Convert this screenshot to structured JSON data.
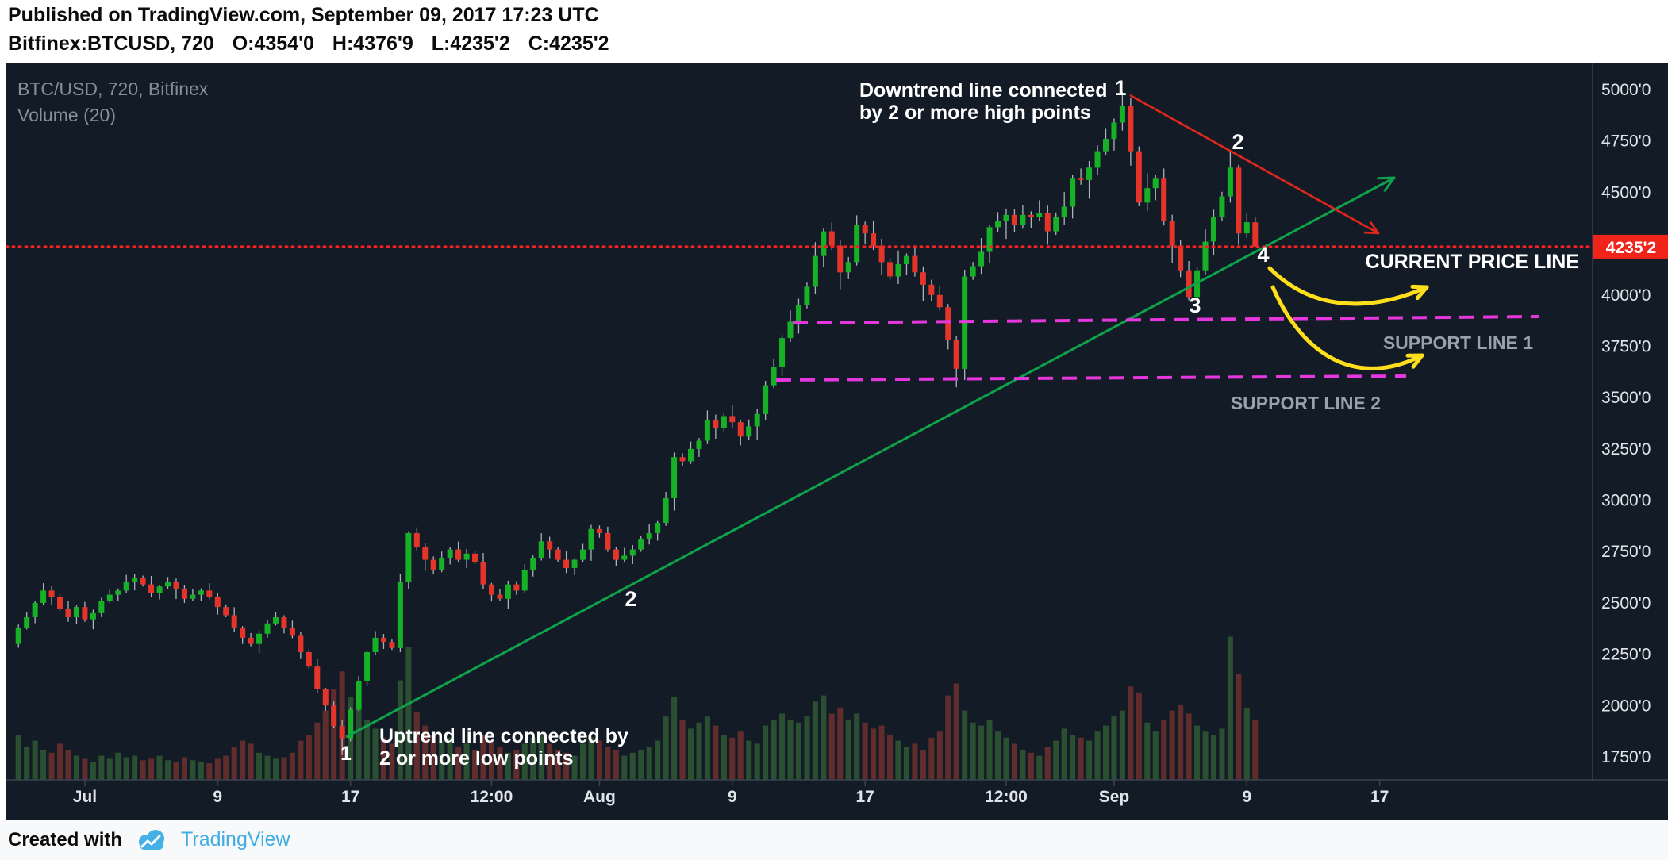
{
  "header": {
    "published_line": "Published on TradingView.com, September 09, 2017 17:23 UTC",
    "symbol_line": "Bitfinex:BTCUSD, 720",
    "ohlc": {
      "o": "O:4354'0",
      "h": "H:4376'9",
      "l": "L:4235'2",
      "c": "C:4235'2"
    }
  },
  "legend": {
    "symbol": "BTC/USD, 720, Bitfinex",
    "volume": "Volume (20)"
  },
  "footer": {
    "created_with": "Created with",
    "brand": "TradingView"
  },
  "axis": {
    "price_ticks": [
      {
        "label": "5000'0",
        "value": 5000
      },
      {
        "label": "4750'0",
        "value": 4750
      },
      {
        "label": "4500'0",
        "value": 4500
      },
      {
        "label": "4250'0",
        "value": 4250
      },
      {
        "label": "4000'0",
        "value": 4000
      },
      {
        "label": "3750'0",
        "value": 3750
      },
      {
        "label": "3500'0",
        "value": 3500
      },
      {
        "label": "3250'0",
        "value": 3250
      },
      {
        "label": "3000'0",
        "value": 3000
      },
      {
        "label": "2750'0",
        "value": 2750
      },
      {
        "label": "2500'0",
        "value": 2500
      },
      {
        "label": "2250'0",
        "value": 2250
      },
      {
        "label": "2000'0",
        "value": 2000
      },
      {
        "label": "1750'0",
        "value": 1750
      }
    ],
    "time_ticks": [
      {
        "label": "Jul",
        "i": 8
      },
      {
        "label": "9",
        "i": 24
      },
      {
        "label": "17",
        "i": 40
      },
      {
        "label": "12:00",
        "i": 57
      },
      {
        "label": "Aug",
        "i": 70
      },
      {
        "label": "9",
        "i": 86
      },
      {
        "label": "17",
        "i": 102
      },
      {
        "label": "12:00",
        "i": 119
      },
      {
        "label": "Sep",
        "i": 132
      },
      {
        "label": "9",
        "i": 148
      },
      {
        "label": "17",
        "i": 164
      }
    ],
    "price_badge": {
      "label": "4235'2",
      "value": 4235.2
    }
  },
  "annotations": {
    "downtrend": {
      "line1": "Downtrend line connected",
      "line2": "by 2 or more high points"
    },
    "uptrend": {
      "line1": "Uptrend line connected by",
      "line2": "2 or more low points"
    },
    "current_price_label": "CURRENT PRICE LINE",
    "support_line_1_label": "SUPPORT LINE 1",
    "support_line_2_label": "SUPPORT LINE 2",
    "point_labels": {
      "peak": "1",
      "lower_high": "2",
      "pullback_low": "3",
      "current": "4",
      "trend_start": "1",
      "trend_mid": "2"
    }
  },
  "chart_data": {
    "type": "candlestick",
    "title": "BTC/USD, 720, Bitfinex",
    "symbol": "BTC/USD",
    "exchange": "Bitfinex",
    "interval_minutes": 720,
    "start_candle_time": "2017-06-27 00:00 UTC",
    "candles_per_day": 2,
    "price_axis_range": [
      1750,
      5000
    ],
    "first_open": 2300,
    "closes": [
      2380,
      2430,
      2500,
      2560,
      2530,
      2470,
      2430,
      2480,
      2420,
      2450,
      2510,
      2540,
      2560,
      2600,
      2620,
      2590,
      2550,
      2580,
      2600,
      2570,
      2520,
      2540,
      2560,
      2530,
      2480,
      2440,
      2380,
      2330,
      2300,
      2350,
      2400,
      2430,
      2380,
      2340,
      2260,
      2190,
      2080,
      2000,
      1900,
      1840,
      1980,
      2120,
      2260,
      2330,
      2310,
      2280,
      2600,
      2840,
      2770,
      2710,
      2660,
      2720,
      2760,
      2710,
      2740,
      2700,
      2590,
      2540,
      2520,
      2590,
      2560,
      2660,
      2720,
      2800,
      2760,
      2710,
      2670,
      2710,
      2760,
      2860,
      2840,
      2760,
      2710,
      2730,
      2760,
      2810,
      2840,
      2890,
      3010,
      3210,
      3190,
      3250,
      3290,
      3390,
      3350,
      3410,
      3380,
      3310,
      3360,
      3420,
      3560,
      3650,
      3790,
      3870,
      3950,
      4040,
      4190,
      4310,
      4240,
      4110,
      4160,
      4340,
      4300,
      4240,
      4160,
      4090,
      4150,
      4190,
      4110,
      4050,
      4000,
      3940,
      3780,
      3640,
      4090,
      4140,
      4210,
      4330,
      4360,
      4390,
      4340,
      4390,
      4380,
      4400,
      4310,
      4380,
      4430,
      4570,
      4560,
      4620,
      4700,
      4760,
      4840,
      4920,
      4700,
      4450,
      4520,
      4570,
      4360,
      4240,
      4120,
      3990,
      4120,
      4260,
      4380,
      4480,
      4620,
      4300,
      4354,
      4235.2
    ],
    "volumes": [
      30,
      22,
      26,
      20,
      18,
      24,
      20,
      16,
      14,
      12,
      16,
      14,
      18,
      15,
      16,
      13,
      14,
      16,
      13,
      12,
      15,
      13,
      12,
      11,
      14,
      16,
      22,
      26,
      24,
      18,
      16,
      14,
      15,
      18,
      26,
      30,
      38,
      46,
      60,
      72,
      55,
      48,
      40,
      34,
      28,
      24,
      66,
      88,
      45,
      36,
      30,
      26,
      28,
      22,
      24,
      20,
      30,
      26,
      22,
      18,
      20,
      24,
      28,
      30,
      24,
      20,
      18,
      16,
      24,
      28,
      26,
      22,
      20,
      16,
      18,
      20,
      22,
      26,
      42,
      55,
      40,
      34,
      38,
      42,
      36,
      30,
      28,
      32,
      26,
      24,
      36,
      40,
      44,
      40,
      38,
      42,
      52,
      56,
      44,
      48,
      40,
      44,
      38,
      34,
      36,
      30,
      26,
      22,
      24,
      20,
      28,
      32,
      56,
      64,
      46,
      38,
      36,
      40,
      32,
      28,
      24,
      20,
      18,
      16,
      22,
      26,
      34,
      30,
      28,
      26,
      32,
      36,
      42,
      46,
      62,
      58,
      38,
      32,
      40,
      46,
      50,
      44,
      36,
      32,
      30,
      34,
      95,
      70,
      48,
      40
    ],
    "wick_upper_pct": [
      0.6,
      1.1,
      0.4,
      1.4,
      0.8,
      0.5,
      1.6,
      0.3,
      1.0,
      0.7
    ],
    "wick_lower_pct": [
      0.8,
      0.4,
      1.2,
      0.5,
      1.5,
      0.4,
      0.9,
      1.3,
      0.5,
      2.0
    ],
    "ohlc_overrides": {
      "39": [
        1900,
        1930,
        1758,
        1840
      ],
      "113": [
        3780,
        3800,
        3550,
        3640
      ],
      "133": [
        4840,
        4988,
        4800,
        4920
      ],
      "146": [
        4480,
        4695,
        4450,
        4620
      ],
      "149": [
        4354,
        4376.9,
        4235.2,
        4235.2
      ]
    }
  },
  "colors": {
    "background": "#131c26",
    "up_candle": "#17b127",
    "down_candle": "#e5352b",
    "wick": "#aab2ba",
    "volume_up": "#3f7a3a",
    "volume_down": "#a23b32",
    "uptrend_line": "#0ea24a",
    "downtrend_line": "#e0271c",
    "current_price_line": "#fa2020",
    "support_line": "#e636dd",
    "highlight_arrow": "#ffdf1b",
    "axis_text": "#dfe5eb",
    "legend_text": "#868f98",
    "support_label_text": "#99a2ac",
    "badge_bg": "#f0241b",
    "badge_text": "#ffffff",
    "annotation_text": "#ffffff",
    "brand_blue": "#45b0e6"
  }
}
